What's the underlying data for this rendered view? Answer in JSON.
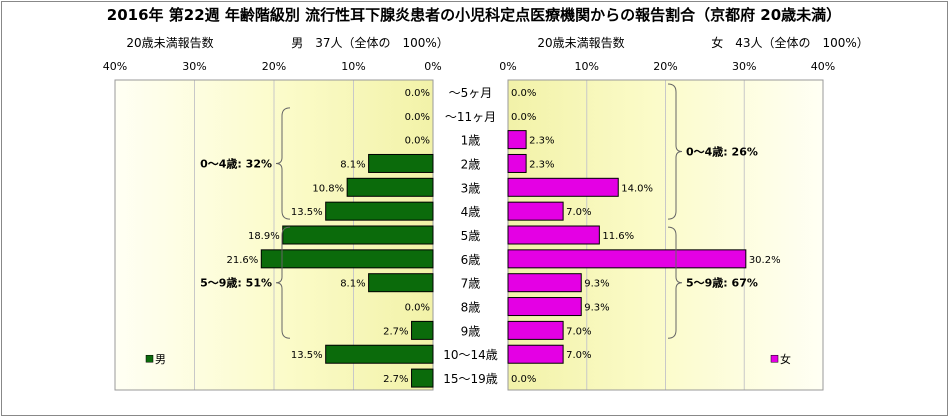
{
  "chart_data": {
    "type": "bar",
    "orientation": "horizontal-butterfly",
    "title": "2016年 第22週 年齢階級別 流行性耳下腺炎患者の小児科定点医療機関からの報告割合（京都府 20歳未満）",
    "unit": "%",
    "xlim": [
      0,
      40
    ],
    "ticks": [
      "0%",
      "10%",
      "20%",
      "30%",
      "40%"
    ],
    "ticks_left": [
      "40%",
      "30%",
      "20%",
      "10%",
      "0%"
    ],
    "categories": [
      "～5ヶ月",
      "～11ヶ月",
      "1歳",
      "2歳",
      "3歳",
      "4歳",
      "5歳",
      "6歳",
      "7歳",
      "8歳",
      "9歳",
      "10～14歳",
      "15～19歳"
    ],
    "grid": true,
    "male": {
      "subtitle_left": "20歳未満報告数",
      "subtitle_count": "男　37人（全体の　100%）",
      "name": "男",
      "color": "#0b6b0b",
      "values": [
        0.0,
        0.0,
        0.0,
        8.1,
        10.8,
        13.5,
        18.9,
        21.6,
        8.1,
        0.0,
        2.7,
        13.5,
        2.7
      ],
      "labels": [
        "0.0%",
        "0.0%",
        "0.0%",
        "8.1%",
        "10.8%",
        "13.5%",
        "18.9%",
        "21.6%",
        "8.1%",
        "0.0%",
        "2.7%",
        "13.5%",
        "2.7%"
      ],
      "groups": [
        {
          "text": "0～4歳: 32%",
          "from": 0,
          "to": 5
        },
        {
          "text": "5～9歳: 51%",
          "from": 6,
          "to": 10
        }
      ]
    },
    "female": {
      "subtitle_left": "20歳未満報告数",
      "subtitle_count": "女　43人（全体の　100%）",
      "name": "女",
      "color": "#e400e4",
      "values": [
        0.0,
        0.0,
        2.3,
        2.3,
        14.0,
        7.0,
        11.6,
        30.2,
        9.3,
        9.3,
        7.0,
        7.0,
        0.0
      ],
      "labels": [
        "0.0%",
        "0.0%",
        "2.3%",
        "2.3%",
        "14.0%",
        "7.0%",
        "11.6%",
        "30.2%",
        "9.3%",
        "9.3%",
        "7.0%",
        "7.0%",
        "0.0%"
      ],
      "groups": [
        {
          "text": "0～4歳: 26%",
          "from": 0,
          "to": 5
        },
        {
          "text": "5～9歳: 67%",
          "from": 6,
          "to": 10
        }
      ]
    },
    "legend": {
      "male": "男",
      "female": "女"
    }
  }
}
